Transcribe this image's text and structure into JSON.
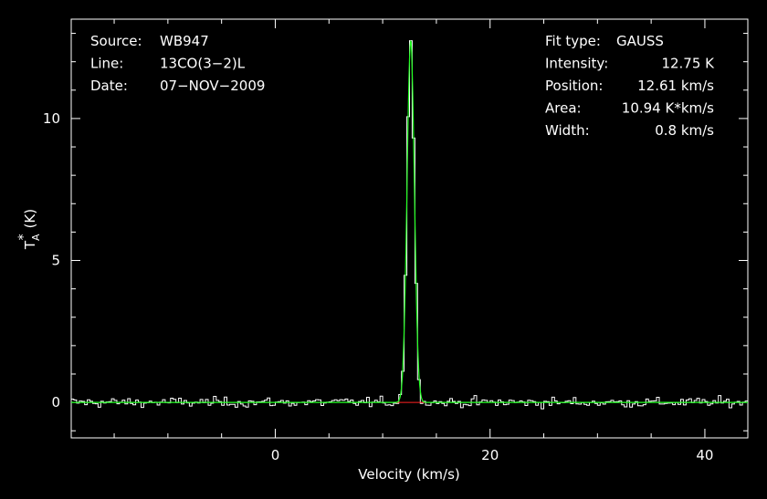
{
  "chart_data": {
    "type": "line",
    "xlabel": "Velocity (km/s)",
    "ylabel": "T",
    "ylabel_sub": "A",
    "ylabel_sup": "*",
    "ylabel_unit": "(K)",
    "xlim": [
      -19,
      44
    ],
    "ylim": [
      -1.25,
      13.5
    ],
    "xticks": [
      0,
      20,
      40
    ],
    "xtick_labels": [
      "0",
      "20",
      "40"
    ],
    "yticks": [
      0,
      5,
      10
    ],
    "ytick_labels": [
      "0",
      "5",
      "10"
    ],
    "info_left": [
      {
        "label": "Source:",
        "value": "WB947"
      },
      {
        "label": "Line:",
        "value": "13CO(3−2)L"
      },
      {
        "label": "Date:",
        "value": "07−NOV−2009"
      }
    ],
    "info_right": [
      {
        "label": "Fit type:",
        "value": "GAUSS"
      },
      {
        "label": "Intensity:",
        "value": "12.75 K"
      },
      {
        "label": "Position:",
        "value": "12.61 km/s"
      },
      {
        "label": "Area:",
        "value": "10.94 K*km/s"
      },
      {
        "label": "Width:",
        "value": "0.8 km/s"
      }
    ],
    "fit": {
      "amplitude": 12.75,
      "center": 12.61,
      "fwhm": 0.8,
      "window": [
        11.2,
        14.0
      ]
    },
    "series": [
      {
        "role": "spectrum",
        "color": "#ffffff"
      },
      {
        "role": "gaussian-fit",
        "color": "#22ff22"
      },
      {
        "role": "fit-baseline",
        "color": "#ff2222"
      }
    ],
    "noise_rms": 0.13,
    "channel_width": 0.25,
    "grid": false
  }
}
